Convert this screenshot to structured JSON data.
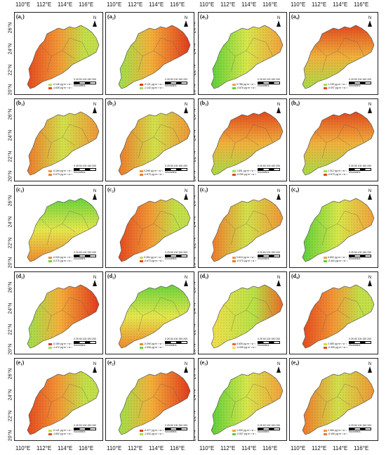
{
  "top_x_labels": [
    "110°E",
    "112°E",
    "114°E",
    "116°E"
  ],
  "bottom_x_labels": [
    "110°E",
    "112°E",
    "114°E",
    "116°E"
  ],
  "lat_labels": [
    "26°N",
    "24°N",
    "22°N",
    "20°N"
  ],
  "north_symbol": "N",
  "scale_text": "0 25 50 100 150 200",
  "scale_unit": "Kilometers",
  "legend_unit": "pg·m⁻²·a⁻¹",
  "colors": {
    "high": "#e0301e",
    "mid": "#f3a03a",
    "low": "#8fd53a",
    "frame": "#222222"
  },
  "panels": [
    {
      "label": "(a₁)",
      "legend_high": "-0.146",
      "legend_low": "-1.635",
      "scheme": "warm_west"
    },
    {
      "label": "(a₂)",
      "legend_high": "-0.121",
      "legend_low": "-1.142",
      "scheme": "warm_east"
    },
    {
      "label": "(a₃)",
      "legend_high": "0.788",
      "legend_low": "-0.876",
      "scheme": "green_west"
    },
    {
      "label": "(a₄)",
      "legend_high": "1.199",
      "legend_low": "-0.097",
      "scheme": "warm_north"
    },
    {
      "label": "(b₁)",
      "legend_high": "-0.164",
      "legend_low": "-0.673",
      "scheme": "mixed"
    },
    {
      "label": "(b₂)",
      "legend_high": "0.265",
      "legend_low": "-0.675",
      "scheme": "mixed"
    },
    {
      "label": "(b₃)",
      "legend_high": "1.891",
      "legend_low": "-0.099",
      "scheme": "warm_north"
    },
    {
      "label": "(b₄)",
      "legend_high": "1.312",
      "legend_low": "-0.679",
      "scheme": "warm_north"
    },
    {
      "label": "(c₁)",
      "legend_high": "-0.029",
      "legend_low": "-0.270",
      "scheme": "green_north"
    },
    {
      "label": "(c₂)",
      "legend_high": "0.284",
      "legend_low": "-0.673",
      "scheme": "warm_west"
    },
    {
      "label": "(c₃)",
      "legend_high": "0.619",
      "legend_low": "-0.073",
      "scheme": "mixed"
    },
    {
      "label": "(c₄)",
      "legend_high": "0.692",
      "legend_low": "-0.404",
      "scheme": "green_west"
    },
    {
      "label": "(d₁)",
      "legend_high": "-0.165",
      "legend_low": "-1.472",
      "scheme": "warm_east"
    },
    {
      "label": "(d₂)",
      "legend_high": "-0.090",
      "legend_low": "-1.546",
      "scheme": "green_north"
    },
    {
      "label": "(d₃)",
      "legend_high": "0.635",
      "legend_low": "-0.059",
      "scheme": "yellow"
    },
    {
      "label": "(d₄)",
      "legend_high": "2.489",
      "legend_low": "-0.399",
      "scheme": "warm_west"
    },
    {
      "label": "(e₁)",
      "legend_high": "-0.141",
      "legend_low": "-1.802",
      "scheme": "warm_west"
    },
    {
      "label": "(e₂)",
      "legend_high": "-0.077",
      "legend_low": "-1.542",
      "scheme": "warm_east"
    },
    {
      "label": "(e₃)",
      "legend_high": "1.993",
      "legend_low": "-0.507",
      "scheme": "green_west"
    },
    {
      "label": "(e₄)",
      "legend_high": "2.484",
      "legend_low": "-0.406",
      "scheme": "mixed"
    }
  ]
}
